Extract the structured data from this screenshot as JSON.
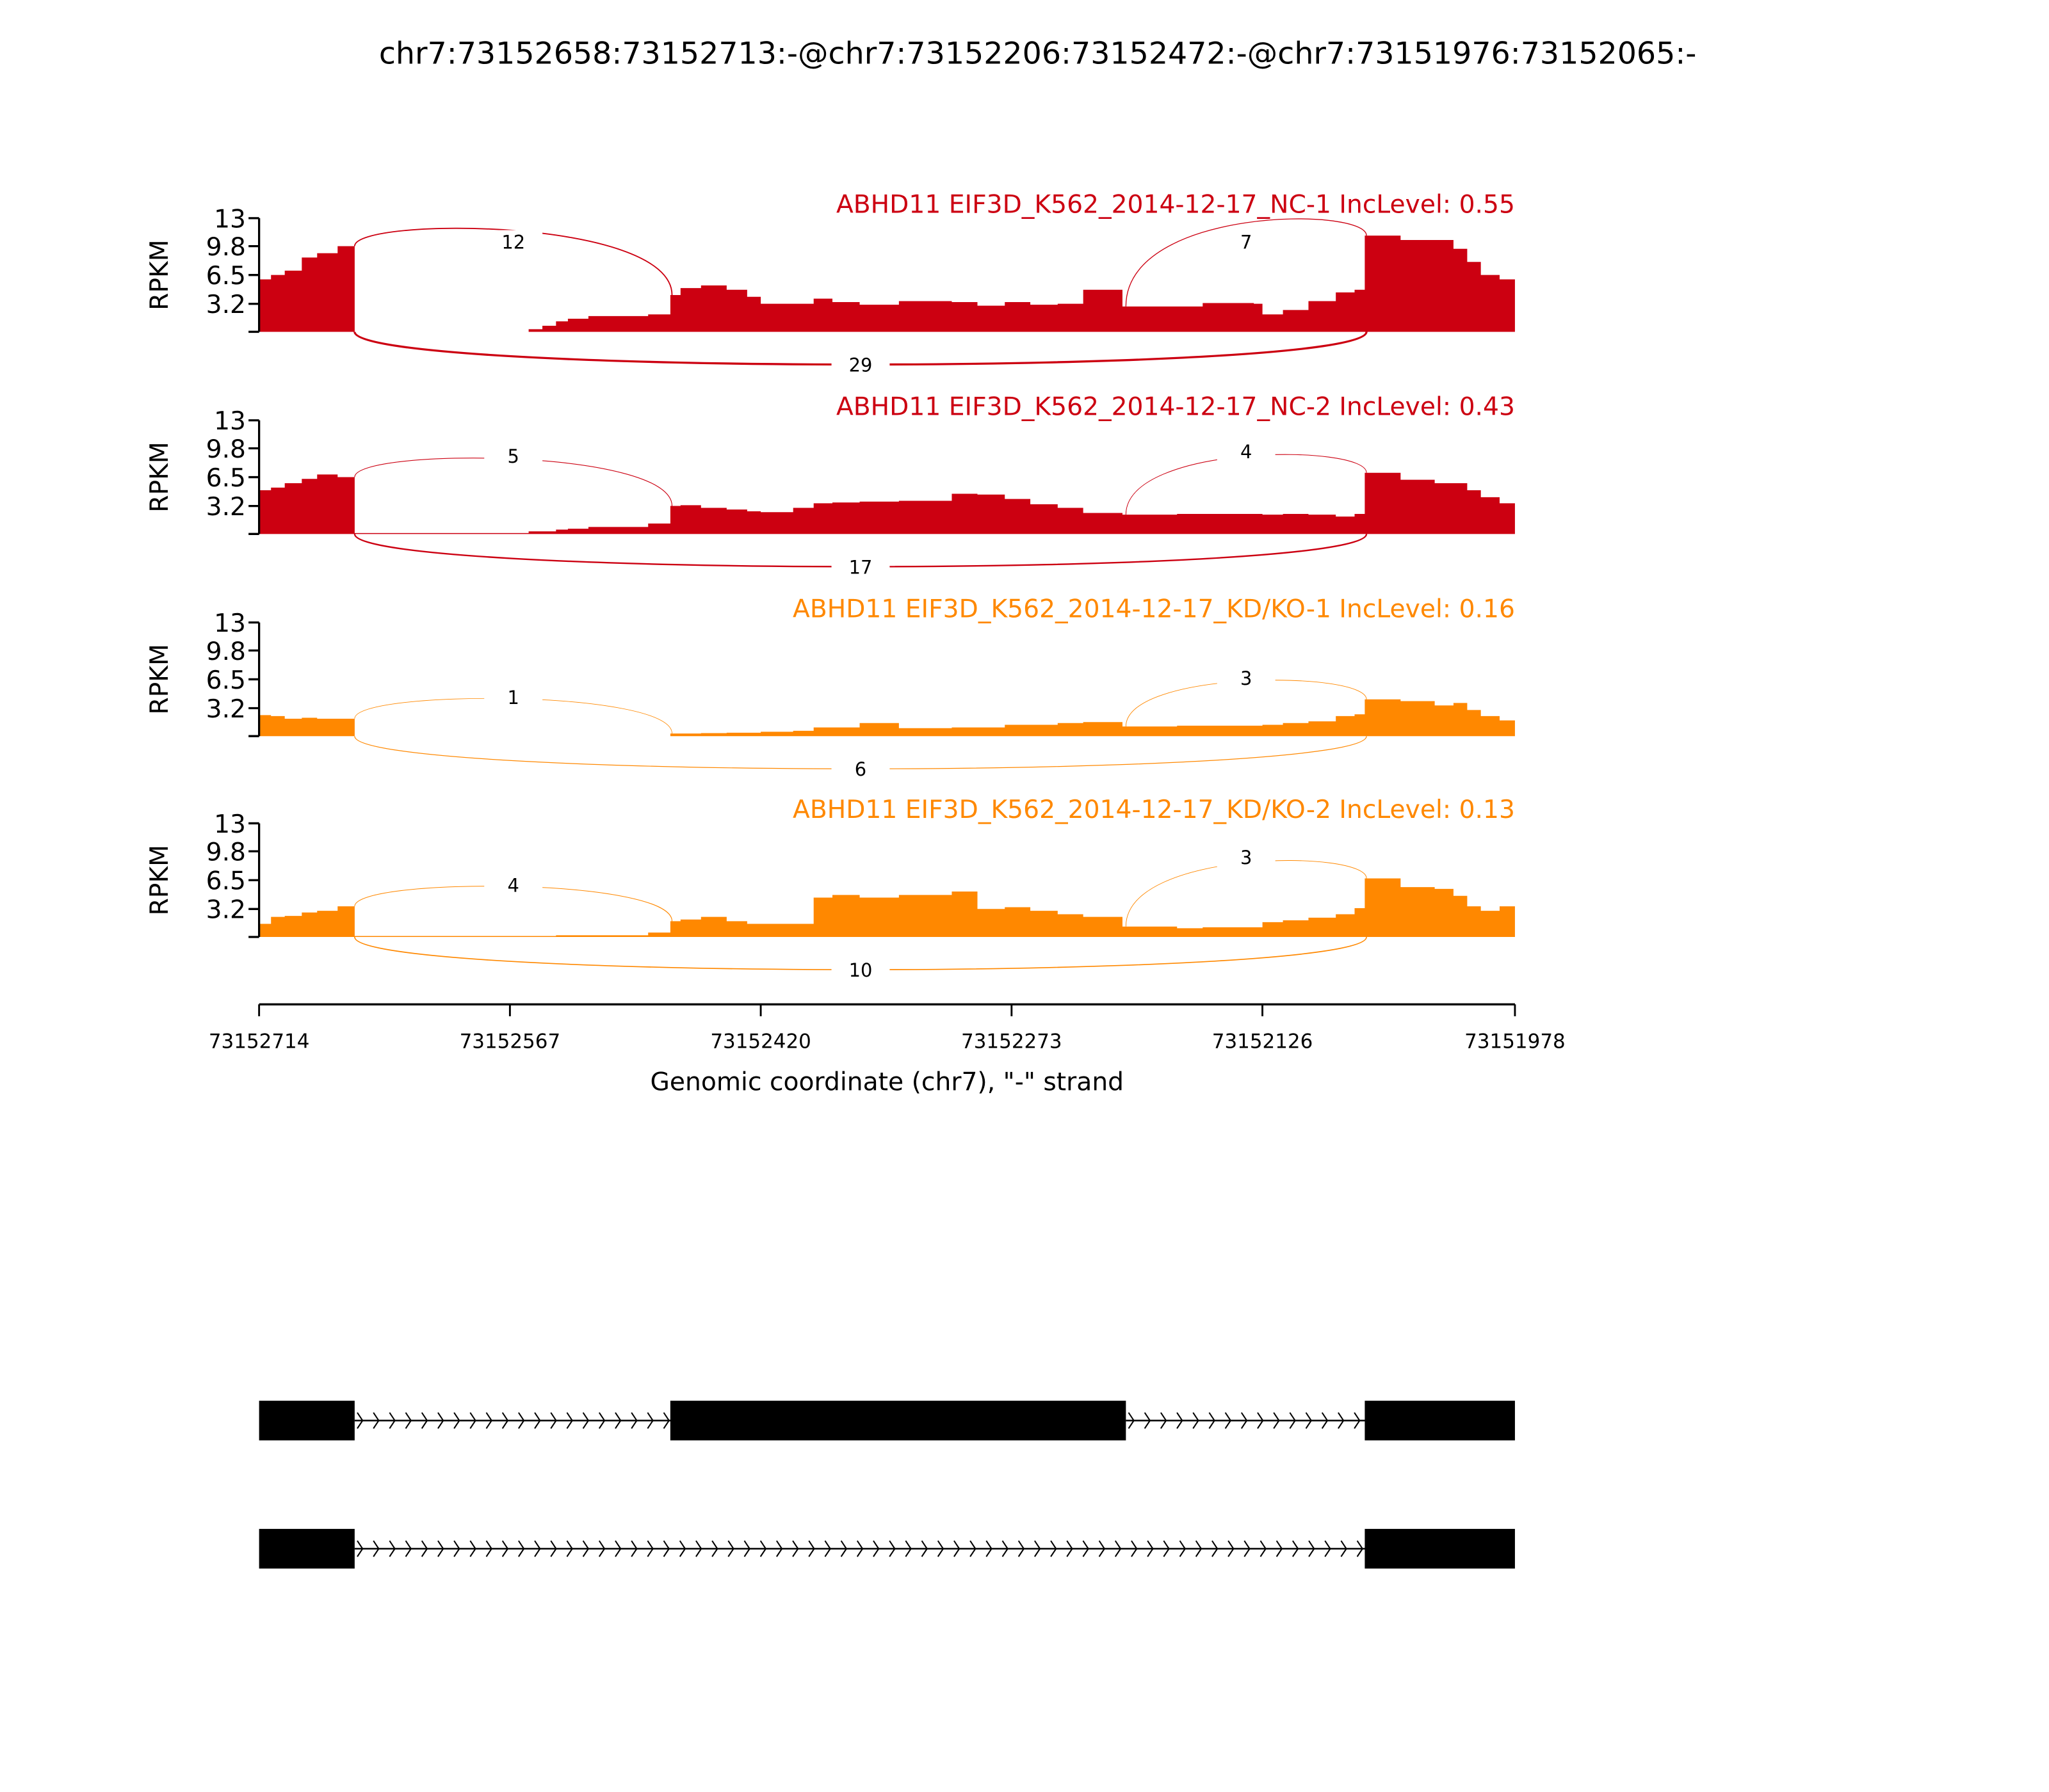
{
  "chart_data": {
    "type": "area",
    "subtype": "sashimi",
    "title": "chr7:73152658:73152713:-@chr7:73152206:73152472:-@chr7:73151976:73152065:-",
    "xlabel": "Genomic coordinate (chr7), \"-\" strand",
    "ylabel": "RPKM",
    "x_start": 73152714,
    "x_end": 73151978,
    "x_ticks": [
      "73152714",
      "73152567",
      "73152420",
      "73152273",
      "73152126",
      "73151978"
    ],
    "y_ticks": [
      "13",
      "9.8",
      "6.5",
      "3.2"
    ],
    "ylim": [
      0,
      13
    ],
    "exons": [
      {
        "start": 73152713,
        "end": 73152658
      },
      {
        "start": 73152472,
        "end": 73152206
      },
      {
        "start": 73152065,
        "end": 73151976
      }
    ],
    "coverage_offsets_bp": [
      0,
      7,
      15,
      25,
      34,
      46,
      56,
      158,
      166,
      174,
      181,
      193,
      228,
      241,
      247,
      259,
      274,
      286,
      294,
      313,
      325,
      336,
      352,
      375,
      406,
      421,
      437,
      452,
      468,
      483,
      506,
      538,
      553,
      583,
      588,
      600,
      615,
      631,
      642,
      648,
      669,
      689,
      700,
      708,
      716,
      727
    ],
    "tracks": [
      {
        "title": "ABHD11 EIF3D_K562_2014-12-17_NC-1 IncLevel: 0.55",
        "color": "#CC0011",
        "coverage_rpkm": [
          6,
          6.5,
          7,
          8.5,
          9,
          9.8,
          0,
          0.3,
          0.7,
          1.2,
          1.5,
          1.8,
          2,
          4.2,
          5,
          5.3,
          4.8,
          4,
          3.2,
          3.2,
          3.8,
          3.4,
          3.1,
          3.5,
          3.4,
          3.0,
          3.4,
          3.1,
          3.2,
          4.8,
          2.9,
          2.9,
          3.3,
          3.2,
          2.0,
          2.5,
          3.5,
          4.5,
          4.8,
          11,
          10.5,
          10.5,
          9.5,
          8,
          6.5,
          6
        ],
        "junctions": [
          {
            "from_exon": 0,
            "to_exon": 1,
            "count": "12",
            "side": "up"
          },
          {
            "from_exon": 1,
            "to_exon": 2,
            "count": "7",
            "side": "up"
          },
          {
            "from_exon": 0,
            "to_exon": 2,
            "count": "29",
            "side": "down"
          }
        ]
      },
      {
        "title": "ABHD11 EIF3D_K562_2014-12-17_NC-2 IncLevel: 0.43",
        "color": "#CC0011",
        "coverage_rpkm": [
          5,
          5.3,
          5.8,
          6.3,
          6.8,
          6.5,
          0.1,
          0.3,
          0.3,
          0.5,
          0.6,
          0.8,
          1.2,
          3.2,
          3.3,
          3.0,
          2.8,
          2.6,
          2.5,
          3.0,
          3.5,
          3.6,
          3.7,
          3.8,
          4.6,
          4.5,
          4.0,
          3.4,
          3.0,
          2.4,
          2.2,
          2.3,
          2.3,
          2.3,
          2.2,
          2.3,
          2.2,
          2.0,
          2.3,
          7,
          6.2,
          5.8,
          5.8,
          5,
          4.2,
          3.5
        ],
        "junctions": [
          {
            "from_exon": 0,
            "to_exon": 1,
            "count": "5",
            "side": "up"
          },
          {
            "from_exon": 1,
            "to_exon": 2,
            "count": "4",
            "side": "up"
          },
          {
            "from_exon": 0,
            "to_exon": 2,
            "count": "17",
            "side": "down"
          }
        ]
      },
      {
        "title": "ABHD11 EIF3D_K562_2014-12-17_KD/KO-1 IncLevel: 0.16",
        "color": "#FF8800",
        "coverage_rpkm": [
          2.4,
          2.3,
          2.0,
          2.1,
          2.0,
          2.0,
          0,
          0,
          0,
          0,
          0,
          0,
          0,
          0.3,
          0.3,
          0.35,
          0.4,
          0.4,
          0.5,
          0.6,
          1.0,
          1.0,
          1.5,
          0.9,
          1.0,
          1.0,
          1.3,
          1.3,
          1.5,
          1.6,
          1.1,
          1.2,
          1.2,
          1.2,
          1.3,
          1.5,
          1.7,
          2.3,
          2.5,
          4.2,
          4.0,
          3.5,
          3.8,
          3.0,
          2.3,
          1.8
        ],
        "junctions": [
          {
            "from_exon": 0,
            "to_exon": 1,
            "count": "1",
            "side": "up"
          },
          {
            "from_exon": 1,
            "to_exon": 2,
            "count": "3",
            "side": "up"
          },
          {
            "from_exon": 0,
            "to_exon": 2,
            "count": "6",
            "side": "down"
          }
        ]
      },
      {
        "title": "ABHD11 EIF3D_K562_2014-12-17_KD/KO-2 IncLevel: 0.13",
        "color": "#FF8800",
        "coverage_rpkm": [
          1.5,
          2.3,
          2.4,
          2.8,
          3.0,
          3.5,
          0.1,
          0.1,
          0.1,
          0.2,
          0.2,
          0.2,
          0.5,
          1.8,
          2.0,
          2.3,
          1.8,
          1.5,
          1.5,
          1.5,
          4.5,
          4.8,
          4.5,
          4.8,
          5.2,
          3.2,
          3.4,
          3.0,
          2.6,
          2.3,
          1.2,
          1.0,
          1.1,
          1.1,
          1.7,
          1.9,
          2.2,
          2.6,
          3.3,
          6.7,
          5.7,
          5.5,
          4.7,
          3.5,
          3.0,
          3.5
        ],
        "junctions": [
          {
            "from_exon": 0,
            "to_exon": 1,
            "count": "4",
            "side": "up"
          },
          {
            "from_exon": 1,
            "to_exon": 2,
            "count": "3",
            "side": "up"
          },
          {
            "from_exon": 0,
            "to_exon": 2,
            "count": "10",
            "side": "down"
          }
        ]
      }
    ],
    "isoforms": [
      {
        "exons": [
          0,
          1,
          2
        ]
      },
      {
        "exons": [
          0,
          2
        ]
      }
    ]
  }
}
